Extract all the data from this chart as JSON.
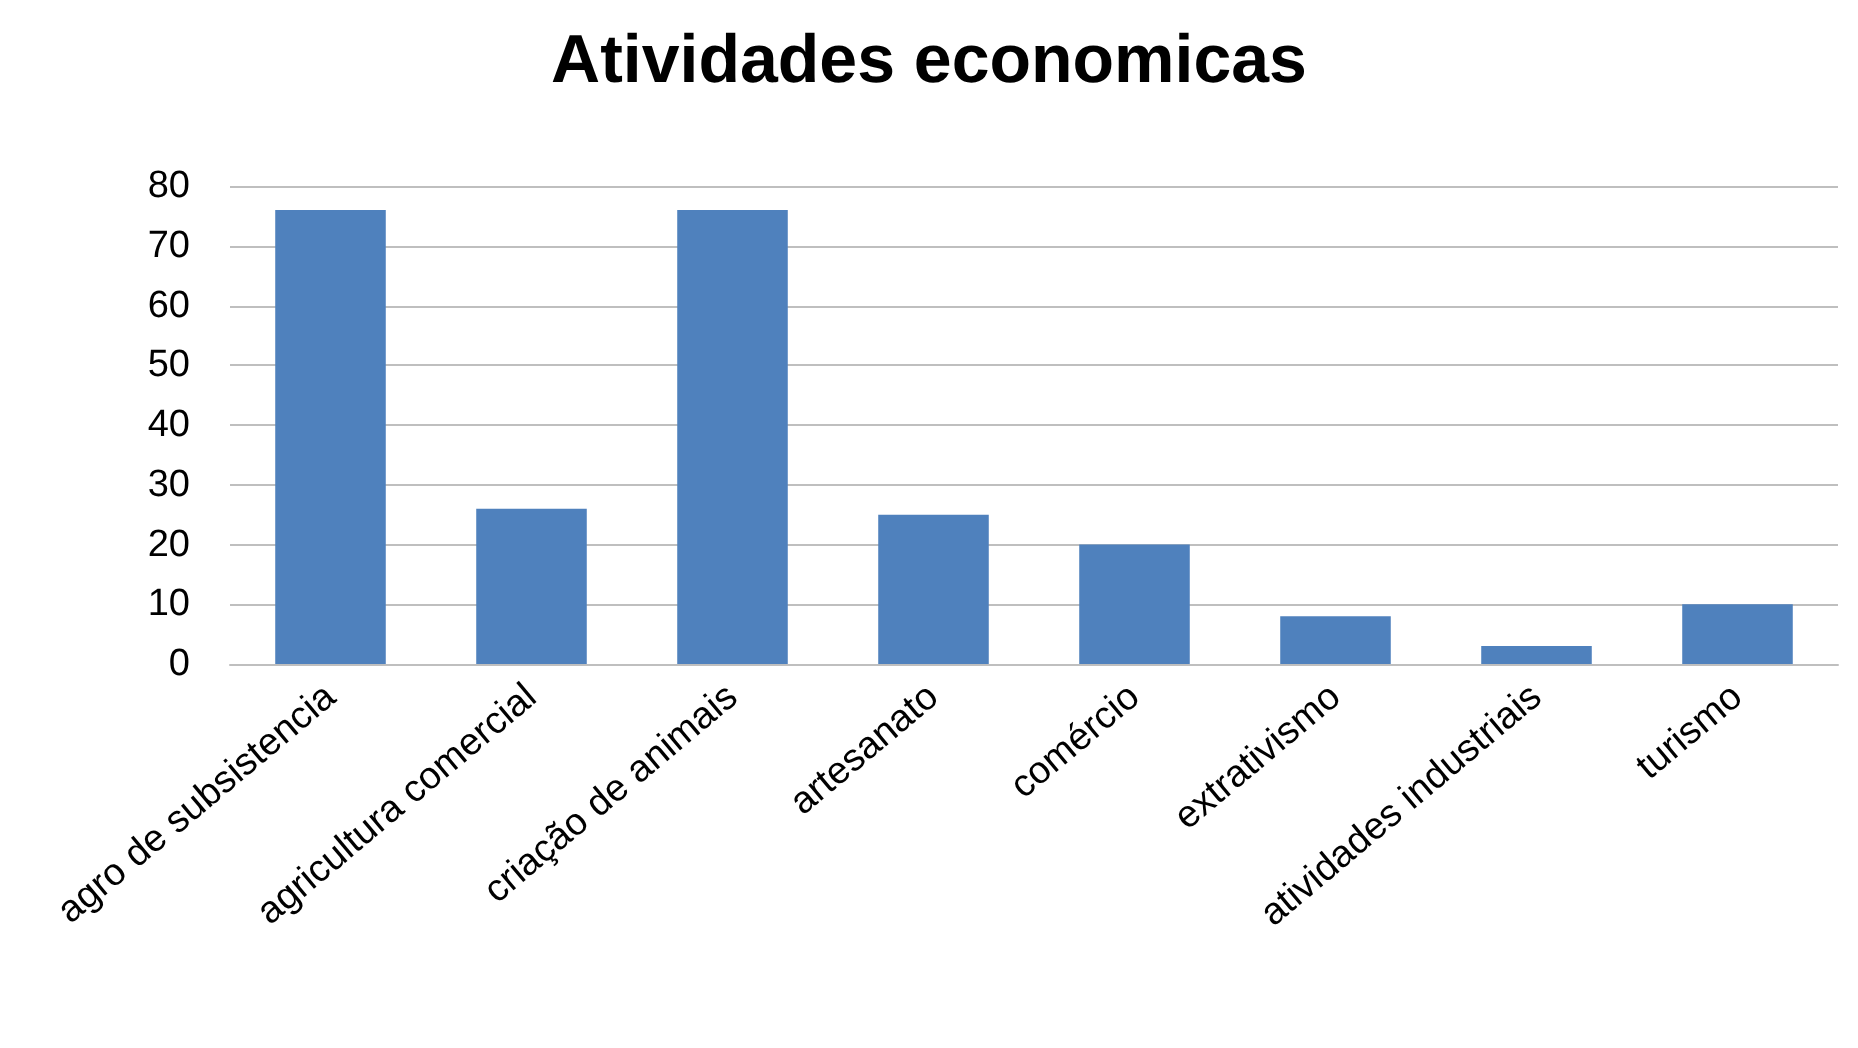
{
  "chart_data": {
    "type": "bar",
    "title": "Atividades economicas",
    "categories": [
      "agro de subsistencia",
      "agricultura comercial",
      "criação de animais",
      "artesanato",
      "comércio",
      "extrativismo",
      "atividades industriais",
      "turismo"
    ],
    "values": [
      76,
      26,
      76,
      25,
      20,
      8,
      3,
      10
    ],
    "color": "#4f81bd",
    "ylim": [
      0,
      80
    ],
    "yticks": [
      0,
      10,
      20,
      30,
      40,
      50,
      60,
      70,
      80
    ],
    "grid": "y"
  }
}
